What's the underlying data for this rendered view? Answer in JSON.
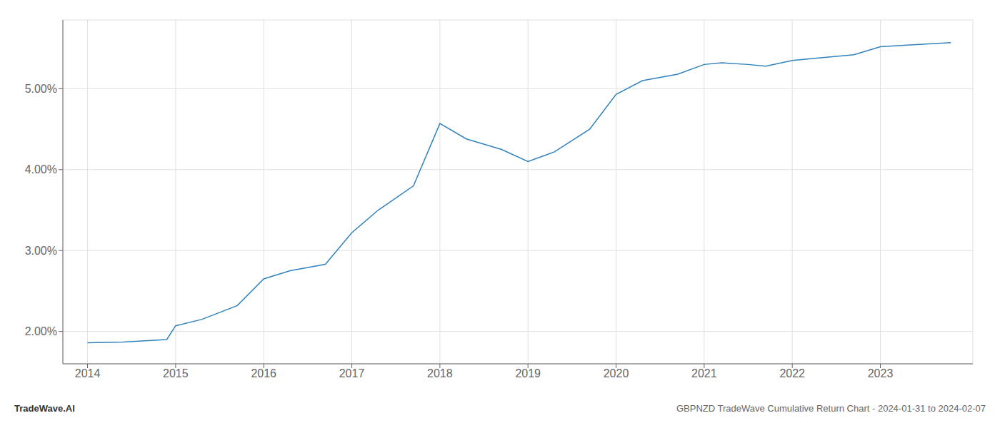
{
  "chart_data": {
    "type": "line",
    "title": "GBPNZD TradeWave Cumulative Return Chart - 2024-01-31 to 2024-02-07",
    "annotations": [
      "TradeWave.AI"
    ],
    "x": [
      2014.0,
      2014.4,
      2014.9,
      2015.0,
      2015.3,
      2015.7,
      2016.0,
      2016.3,
      2016.7,
      2017.0,
      2017.3,
      2017.7,
      2018.0,
      2018.3,
      2018.7,
      2019.0,
      2019.3,
      2019.7,
      2020.0,
      2020.3,
      2020.7,
      2021.0,
      2021.2,
      2021.5,
      2021.7,
      2022.0,
      2022.3,
      2022.7,
      2023.0,
      2023.3,
      2023.8
    ],
    "values": [
      1.86,
      1.87,
      1.9,
      2.07,
      2.15,
      2.32,
      2.65,
      2.75,
      2.83,
      3.22,
      3.5,
      3.8,
      4.57,
      4.38,
      4.25,
      4.1,
      4.22,
      4.5,
      4.93,
      5.1,
      5.18,
      5.3,
      5.32,
      5.3,
      5.28,
      5.35,
      5.38,
      5.42,
      5.52,
      5.54,
      5.57
    ],
    "xlim": [
      2013.72,
      2024.05
    ],
    "ylim": [
      1.6,
      5.85
    ],
    "xticks": [
      2014,
      2015,
      2016,
      2017,
      2018,
      2019,
      2020,
      2021,
      2022,
      2023
    ],
    "yticks": [
      {
        "value": 2.0,
        "label": "2.00%"
      },
      {
        "value": 3.0,
        "label": "3.00%"
      },
      {
        "value": 4.0,
        "label": "4.00%"
      },
      {
        "value": 5.0,
        "label": "5.00%"
      }
    ],
    "grid": true
  }
}
